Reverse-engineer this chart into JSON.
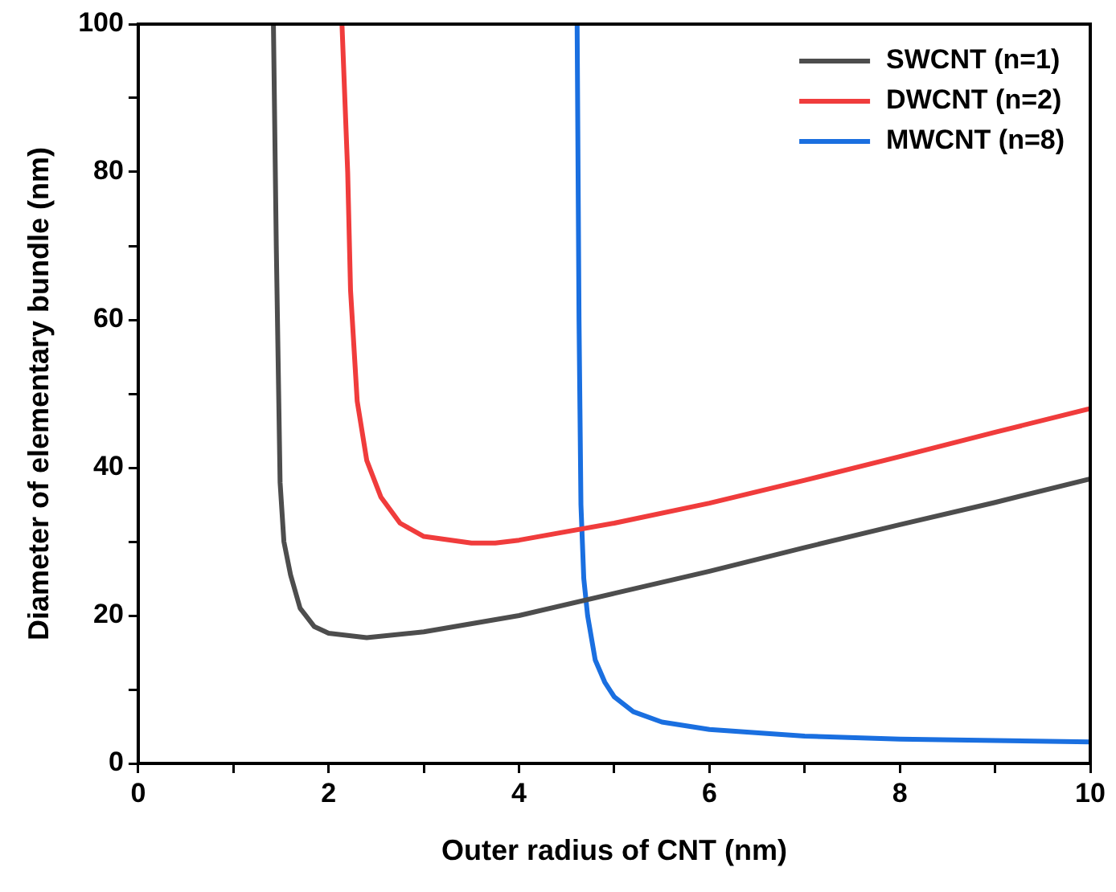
{
  "chart_data": {
    "type": "line",
    "xlabel": "Outer radius of CNT (nm)",
    "ylabel": "Diameter of elementary bundle (nm)",
    "xlim": [
      0,
      10
    ],
    "xticks": [
      0,
      {
        "value": 1,
        "label": null
      },
      2,
      {
        "value": 3,
        "label": null
      },
      4,
      {
        "value": 5,
        "label": null
      },
      6,
      {
        "value": 7,
        "label": null
      },
      8,
      {
        "value": 9,
        "label": null
      },
      10
    ],
    "ylim": [
      0,
      100
    ],
    "yticks": [
      0,
      {
        "value": 10,
        "label": null
      },
      20,
      {
        "value": 30,
        "label": null
      },
      40,
      {
        "value": 50,
        "label": null
      },
      60,
      {
        "value": 70,
        "label": null
      },
      80,
      {
        "value": 90,
        "label": null
      },
      100
    ],
    "grid": false,
    "legend": "top right",
    "marker": "none",
    "line_style": "solid",
    "series": [
      {
        "name": "SWCNT (n=1)",
        "color": "#4d4d4d",
        "x": [
          1.42,
          1.45,
          1.49,
          1.53,
          1.6,
          1.7,
          1.85,
          2.0,
          2.4,
          3,
          4,
          5,
          6,
          7,
          8,
          9,
          10
        ],
        "values": [
          100,
          70,
          38,
          30,
          25.5,
          21,
          18.5,
          17.6,
          17,
          17.8,
          20,
          23,
          26,
          29.2,
          32.3,
          35.3,
          38.5
        ]
      },
      {
        "name": "DWCNT (n=2)",
        "color": "#f03c3c",
        "x": [
          2.14,
          2.2,
          2.23,
          2.3,
          2.4,
          2.55,
          2.75,
          3,
          3.5,
          3.75,
          4,
          5,
          6,
          7,
          8,
          9,
          10
        ],
        "values": [
          100,
          80,
          64,
          49,
          41,
          36,
          32.5,
          30.7,
          29.8,
          29.8,
          30.2,
          32.5,
          35.2,
          38.3,
          41.5,
          44.8,
          48
        ]
      },
      {
        "name": "MWCNT (n=8)",
        "color": "#1a6fe0",
        "x": [
          4.61,
          4.63,
          4.65,
          4.68,
          4.72,
          4.8,
          4.9,
          5,
          5.2,
          5.5,
          6,
          7,
          8,
          9,
          10
        ],
        "values": [
          100,
          60,
          35,
          25,
          20,
          14,
          11,
          9,
          7,
          5.6,
          4.6,
          3.7,
          3.3,
          3.1,
          2.9
        ]
      }
    ]
  }
}
